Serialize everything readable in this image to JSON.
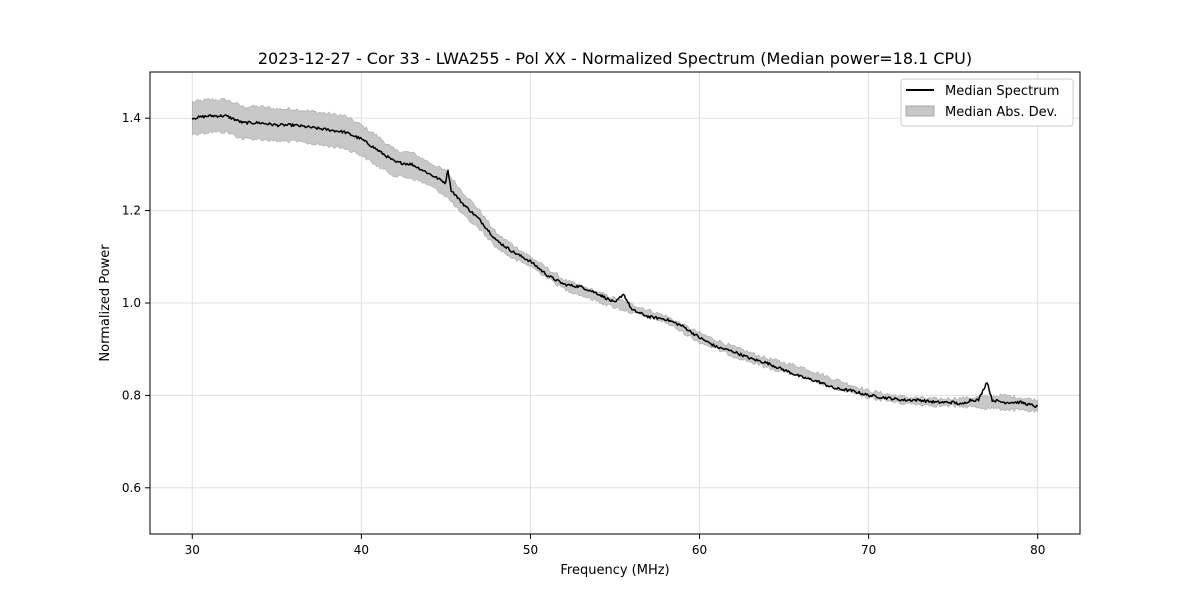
{
  "chart_data": {
    "type": "line",
    "title": "2023-12-27 - Cor 33 - LWA255 - Pol XX - Normalized Spectrum (Median power=18.1 CPU)",
    "xlabel": "Frequency (MHz)",
    "ylabel": "Normalized Power",
    "xlim": [
      27.5,
      82.5
    ],
    "ylim": [
      0.5,
      1.5
    ],
    "xticks": [
      30,
      40,
      50,
      60,
      70,
      80
    ],
    "yticks": [
      0.6,
      0.8,
      1.0,
      1.2,
      1.4
    ],
    "xtick_labels": [
      "30",
      "40",
      "50",
      "60",
      "70",
      "80"
    ],
    "ytick_labels": [
      "0.6",
      "0.8",
      "1.0",
      "1.2",
      "1.4"
    ],
    "grid": true,
    "legend": {
      "position": "top-right",
      "entries": [
        "Median Spectrum",
        "Median Abs. Dev."
      ]
    },
    "colors": {
      "line": "#000000",
      "band": "#c8c8c8",
      "band_edge": "#a8a8a8",
      "grid": "#e0e0e0"
    },
    "series": [
      {
        "name": "Median Spectrum",
        "x": [
          30,
          31,
          32,
          33,
          34,
          35,
          36,
          37,
          38,
          39,
          40,
          41,
          42,
          43,
          44,
          45,
          45.1,
          45.3,
          46,
          47,
          48,
          49,
          50,
          51,
          52,
          53,
          54,
          55,
          55.5,
          56,
          57,
          58,
          59,
          60,
          61,
          62,
          63,
          64,
          65,
          66,
          67,
          68,
          69,
          70,
          71,
          72,
          73,
          74,
          75,
          75.5,
          76,
          76.5,
          77,
          77.3,
          78,
          79,
          80
        ],
        "values": [
          1.4,
          1.405,
          1.405,
          1.39,
          1.39,
          1.385,
          1.385,
          1.38,
          1.375,
          1.37,
          1.355,
          1.33,
          1.305,
          1.3,
          1.28,
          1.26,
          1.295,
          1.245,
          1.215,
          1.18,
          1.135,
          1.11,
          1.09,
          1.06,
          1.04,
          1.035,
          1.02,
          1.0,
          1.02,
          0.985,
          0.97,
          0.965,
          0.95,
          0.925,
          0.905,
          0.895,
          0.88,
          0.87,
          0.855,
          0.84,
          0.83,
          0.815,
          0.81,
          0.8,
          0.795,
          0.79,
          0.79,
          0.785,
          0.785,
          0.78,
          0.79,
          0.79,
          0.83,
          0.79,
          0.785,
          0.785,
          0.775
        ]
      },
      {
        "name": "Median Abs. Dev.",
        "x": [
          30,
          31,
          32,
          33,
          34,
          35,
          36,
          37,
          38,
          39,
          40,
          41,
          42,
          43,
          44,
          45,
          46,
          47,
          48,
          49,
          50,
          52,
          55,
          58,
          60,
          62,
          64,
          66,
          68,
          70,
          72,
          74,
          76,
          78,
          80
        ],
        "upper": [
          1.435,
          1.44,
          1.44,
          1.425,
          1.425,
          1.42,
          1.42,
          1.415,
          1.41,
          1.405,
          1.385,
          1.36,
          1.33,
          1.325,
          1.305,
          1.285,
          1.24,
          1.2,
          1.15,
          1.125,
          1.1,
          1.05,
          1.01,
          0.972,
          0.935,
          0.905,
          0.88,
          0.862,
          0.835,
          0.81,
          0.797,
          0.792,
          0.795,
          0.8,
          0.79
        ],
        "lower": [
          1.365,
          1.37,
          1.37,
          1.355,
          1.355,
          1.35,
          1.35,
          1.345,
          1.34,
          1.335,
          1.32,
          1.295,
          1.275,
          1.27,
          1.255,
          1.232,
          1.19,
          1.16,
          1.12,
          1.095,
          1.08,
          1.03,
          0.99,
          0.958,
          0.915,
          0.885,
          0.86,
          0.842,
          0.815,
          0.795,
          0.783,
          0.778,
          0.775,
          0.77,
          0.765
        ]
      }
    ]
  }
}
